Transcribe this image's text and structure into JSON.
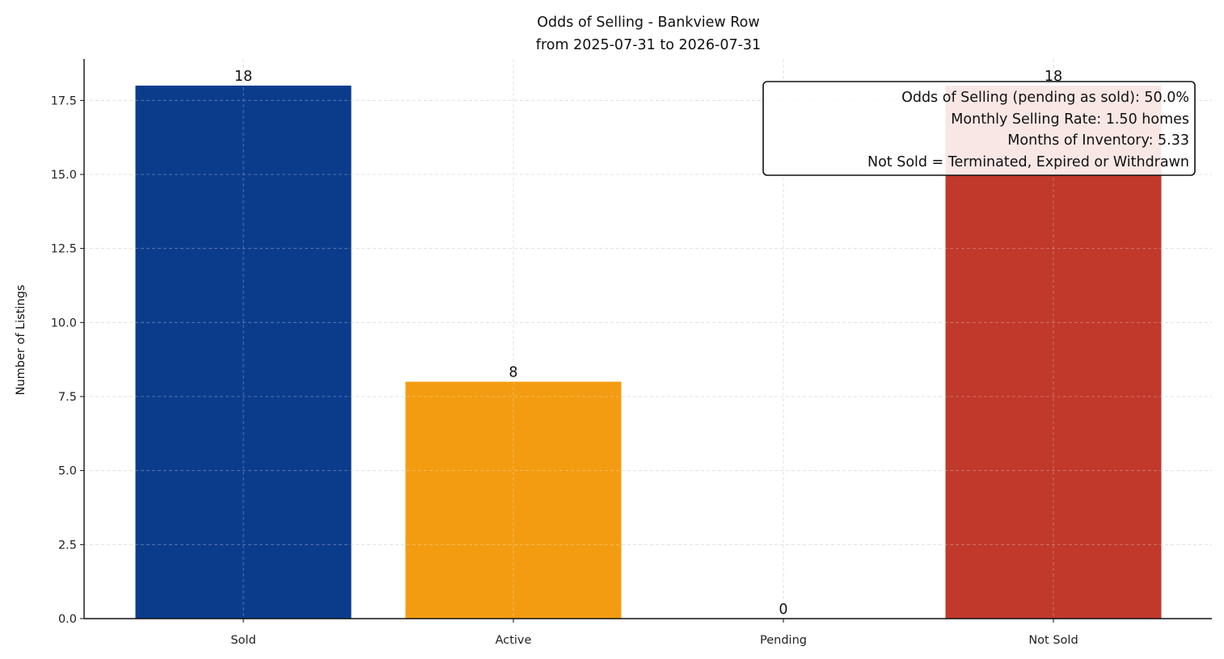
{
  "chart_data": {
    "type": "bar",
    "title": "Odds of Selling - Bankview Row",
    "subtitle": "from 2025-07-31 to 2026-07-31",
    "xlabel": "",
    "ylabel": "Number of Listings",
    "categories": [
      "Sold",
      "Active",
      "Pending",
      "Not Sold"
    ],
    "values": [
      18,
      8,
      0,
      18
    ],
    "bar_labels": [
      "18",
      "8",
      "0",
      "18"
    ],
    "colors": [
      "#0b3c8c",
      "#f39c12",
      "#ffffff",
      "#c0392b"
    ],
    "ylim": [
      0,
      18.9
    ],
    "yticks": [
      0,
      2.5,
      5,
      7.5,
      10,
      12.5,
      15,
      17.5
    ],
    "ytick_labels": [
      "0.0",
      "2.5",
      "5.0",
      "7.5",
      "10.0",
      "12.5",
      "15.0",
      "17.5"
    ],
    "grid": true,
    "annotation_box": {
      "lines": [
        "Odds of Selling (pending as sold): 50.0%",
        "Monthly Selling Rate: 1.50 homes",
        "Months of Inventory: 5.33",
        "Not Sold = Terminated, Expired or Withdrawn"
      ],
      "placement": "top-right"
    }
  }
}
